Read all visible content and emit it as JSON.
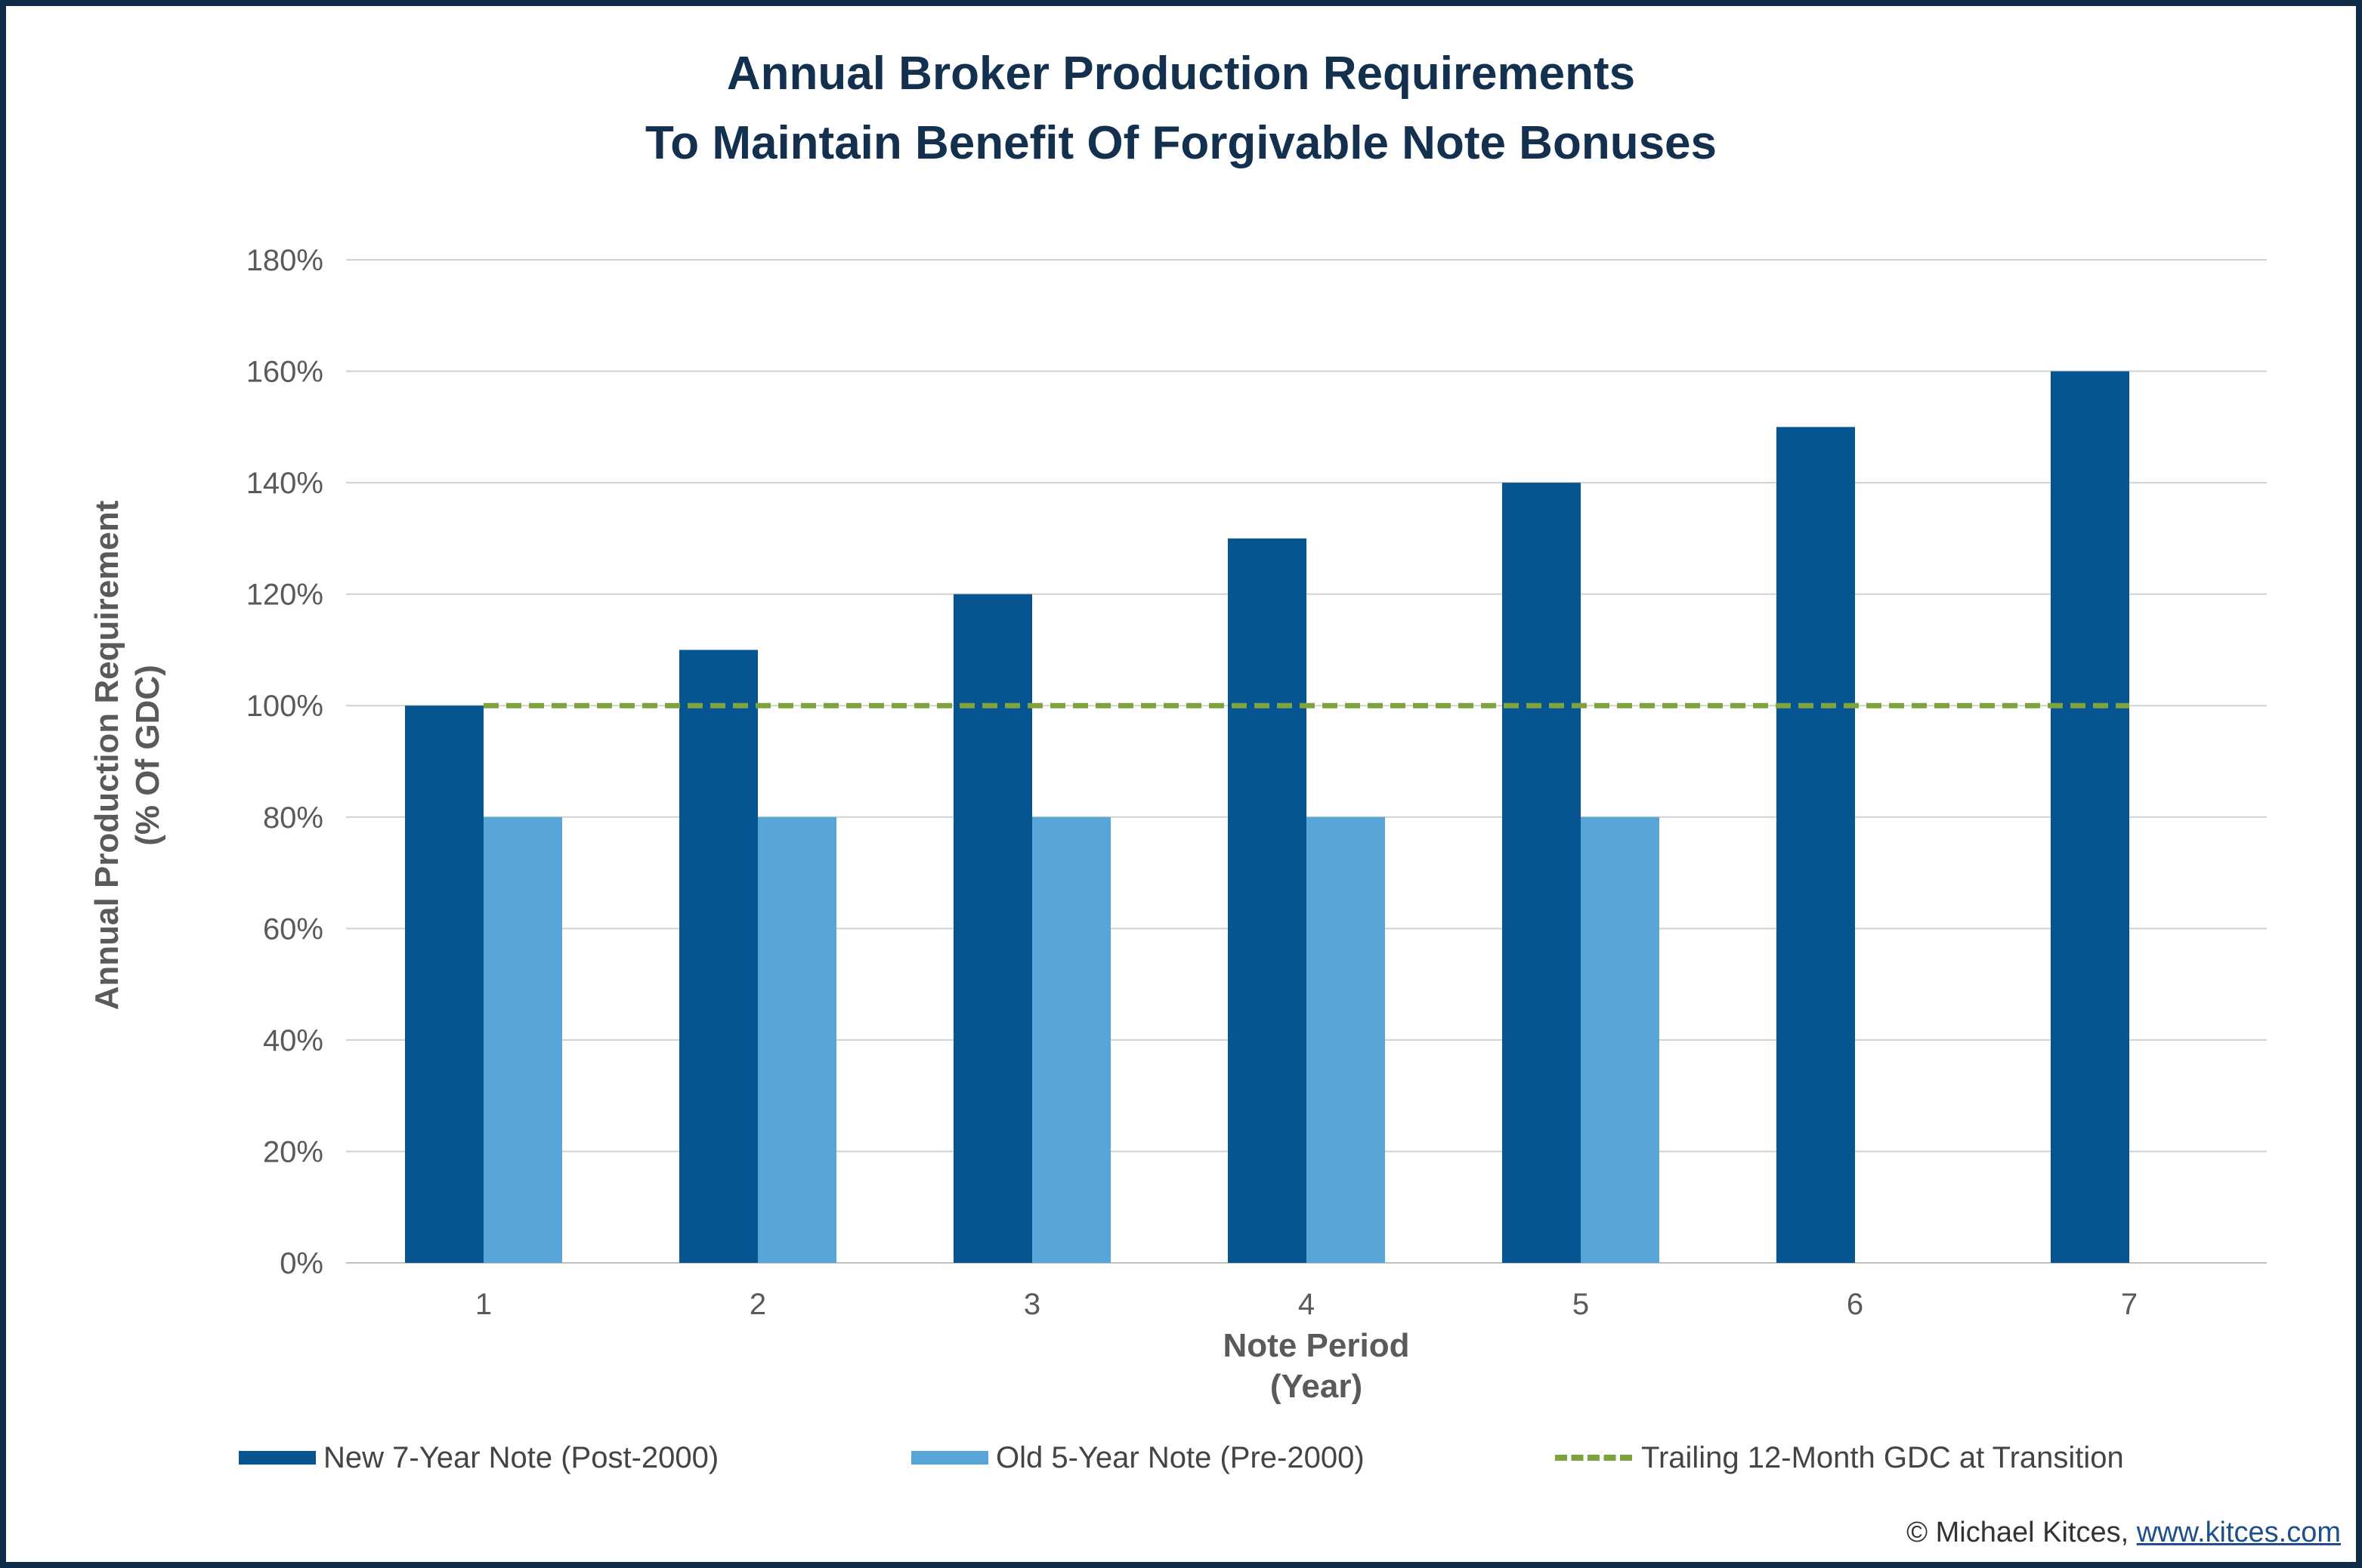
{
  "chart_data": {
    "type": "bar",
    "title": [
      "Annual Broker Production Requirements",
      "To Maintain Benefit Of Forgivable Note Bonuses"
    ],
    "xlabel": [
      "Note Period",
      "(Year)"
    ],
    "ylabel": [
      "Annual Production Requirement",
      "(% Of GDC)"
    ],
    "categories": [
      "1",
      "2",
      "3",
      "4",
      "5",
      "6",
      "7"
    ],
    "ylim": [
      0,
      180
    ],
    "yticks": [
      0,
      20,
      40,
      60,
      80,
      100,
      120,
      140,
      160,
      180
    ],
    "ytick_labels": [
      "0%",
      "20%",
      "40%",
      "60%",
      "80%",
      "100%",
      "120%",
      "140%",
      "160%",
      "180%"
    ],
    "grid": true,
    "series": [
      {
        "name": "New 7-Year Note (Post-2000)",
        "type": "bar",
        "color": "#065591",
        "values": [
          100,
          110,
          120,
          130,
          140,
          150,
          160
        ]
      },
      {
        "name": "Old 5-Year Note (Pre-2000)",
        "type": "bar",
        "color": "#58a5d8",
        "values": [
          80,
          80,
          80,
          80,
          80,
          null,
          null
        ]
      },
      {
        "name": "Trailing 12-Month GDC at Transition",
        "type": "line",
        "style": "dashed",
        "color": "#7ea23f",
        "values": [
          100,
          100,
          100,
          100,
          100,
          100,
          100
        ]
      }
    ],
    "legend_position": "bottom"
  },
  "credit": {
    "text": "© Michael Kitces, ",
    "link": "www.kitces.com"
  },
  "colors": {
    "frame": "#0f2b48",
    "title": "#13304f",
    "grid": "#d0d0d0"
  }
}
